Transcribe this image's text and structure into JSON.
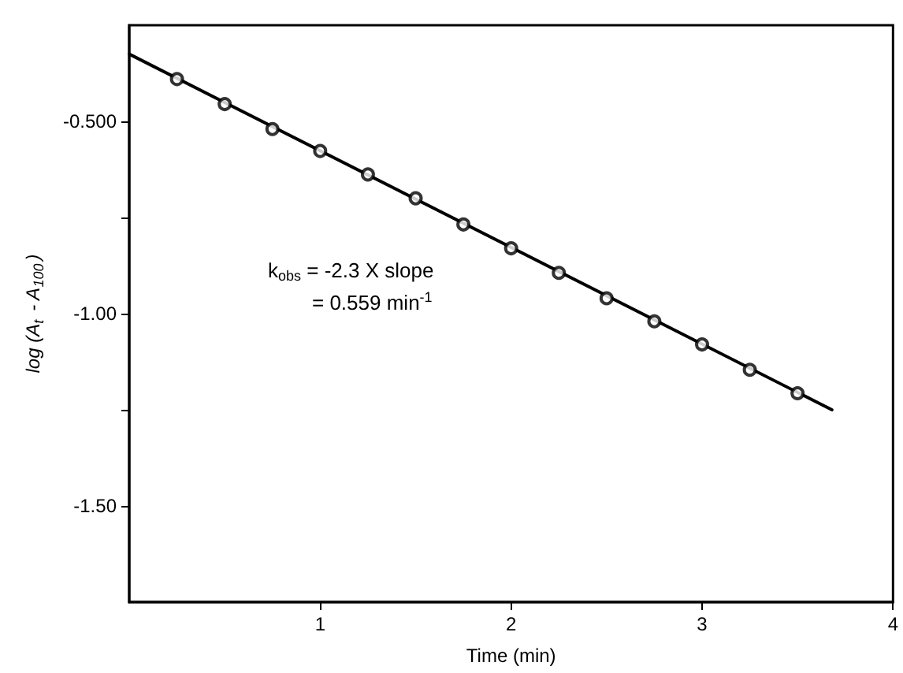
{
  "chart_data": {
    "type": "scatter",
    "xlabel": "Time (min)",
    "ylabel": "log (A$_{t}$ - A$_{100}$)",
    "annotations": [
      "k$_{obs}$ = -2.3 X slope",
      "= 0.559 min$^{-1}$"
    ],
    "xlim": [
      0,
      4
    ],
    "xticks": [
      1,
      2,
      3,
      4
    ],
    "ylim": [
      -1.75,
      -0.25
    ],
    "yticks": [
      {
        "value": -0.5,
        "label": "-0.500"
      },
      {
        "value": -0.75,
        "label": null
      },
      {
        "value": -1,
        "label": "-1.00"
      },
      {
        "value": -1.25,
        "label": null
      },
      {
        "value": -1.5,
        "label": "-1.50"
      }
    ],
    "grid": false,
    "series": [
      {
        "color": "#000000",
        "marker": "circle",
        "x": [
          0.25,
          0.5,
          0.75,
          1.0,
          1.25,
          1.5,
          1.75,
          2.0,
          2.25,
          2.5,
          2.75,
          3.0,
          3.25,
          3.5
        ],
        "values": [
          -0.39,
          -0.455,
          -0.52,
          -0.577,
          -0.638,
          -0.7,
          -0.768,
          -0.83,
          -0.894,
          -0.96,
          -1.02,
          -1.08,
          -1.146,
          -1.207
        ]
      },
      {
        "type": "line",
        "color": "#000000",
        "marker": "none",
        "line_style": "solid",
        "x": [
          0,
          3.68
        ],
        "values": [
          -0.325,
          -1.25
        ]
      }
    ]
  }
}
